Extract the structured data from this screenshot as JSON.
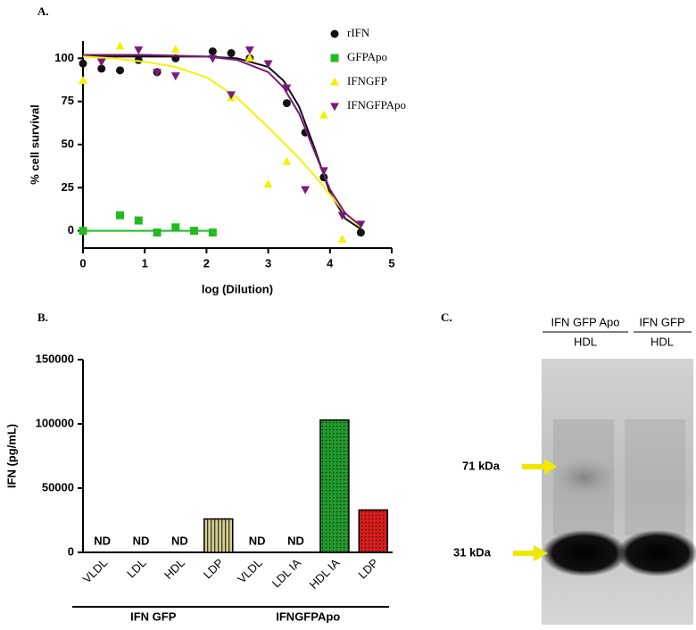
{
  "chart_data": [
    {
      "type": "scatter",
      "title": "A.",
      "xlabel": "log (Dilution)",
      "ylabel": "% cell survival",
      "xlim": [
        0,
        5
      ],
      "xticks": [
        0,
        1,
        2,
        3,
        4,
        5
      ],
      "ylim": [
        -10,
        110
      ],
      "yticks": [
        0,
        25,
        50,
        75,
        100
      ],
      "legend": "upper right",
      "series": [
        {
          "name": "rIFN",
          "color": "#111111",
          "marker": "circle",
          "x": [
            0,
            0.3,
            0.6,
            0.9,
            1.2,
            1.5,
            2.1,
            2.4,
            2.7,
            3.3,
            3.6,
            3.9,
            4.5
          ],
          "values": [
            97,
            94,
            93,
            99,
            92,
            100,
            104,
            103,
            100,
            74,
            57,
            31,
            -1
          ],
          "fit": {
            "x": [
              0,
              0.5,
              1,
              1.5,
              2,
              2.5,
              3,
              3.25,
              3.5,
              3.75,
              4,
              4.25,
              4.5
            ],
            "values": [
              101,
              101,
              101,
              101,
              101,
              100,
              95,
              87,
              72,
              48,
              22,
              7,
              1
            ]
          }
        },
        {
          "name": "GFPApo",
          "color": "#22bb22",
          "marker": "square",
          "x": [
            0,
            0.6,
            0.9,
            1.2,
            1.5,
            1.8,
            2.1
          ],
          "values": [
            0,
            9,
            6,
            -1,
            2,
            0,
            -1
          ],
          "fit": {
            "x": [
              0,
              2.1
            ],
            "values": [
              0,
              0
            ]
          }
        },
        {
          "name": "IFNGFP",
          "color": "#f2f200",
          "marker": "triangle-up",
          "x": [
            0,
            0.6,
            1.5,
            2.4,
            2.7,
            3.0,
            3.3,
            3.9,
            4.2
          ],
          "values": [
            87,
            107,
            105,
            77,
            100,
            27,
            40,
            67,
            -5
          ],
          "fit": {
            "x": [
              0,
              0.5,
              1,
              1.5,
              2,
              2.5,
              3,
              3.25,
              3.5,
              3.75,
              4,
              4.25,
              4.5
            ],
            "values": [
              101,
              100,
              98,
              95,
              89,
              77,
              60,
              51,
              42,
              32,
              21,
              10,
              2
            ]
          }
        },
        {
          "name": "IFNGFPApo",
          "color": "#7a1a7a",
          "marker": "triangle-down",
          "x": [
            0.3,
            0.9,
            1.2,
            1.5,
            2.1,
            2.4,
            2.7,
            3.0,
            3.3,
            3.6,
            3.9,
            4.2,
            4.5
          ],
          "values": [
            98,
            105,
            92,
            90,
            100,
            79,
            105,
            97,
            83,
            24,
            35,
            9,
            4
          ],
          "fit": {
            "x": [
              0,
              0.5,
              1,
              1.5,
              2,
              2.5,
              3,
              3.25,
              3.5,
              3.75,
              4,
              4.25,
              4.5
            ],
            "values": [
              102,
              102,
              102,
              101.5,
              101,
              99,
              92,
              83,
              68,
              46,
              24,
              10,
              3
            ]
          }
        }
      ]
    },
    {
      "type": "bar",
      "title": "B.",
      "ylabel": "IFN (pg/mL)",
      "ylim": [
        0,
        150000
      ],
      "yticks": [
        0,
        50000,
        100000,
        150000
      ],
      "categories": [
        "VLDL",
        "LDL",
        "HDL",
        "LDP",
        "VLDL",
        "LDL IA",
        "HDL IA",
        "LDP"
      ],
      "values": [
        null,
        null,
        null,
        26000,
        null,
        null,
        103000,
        33000
      ],
      "value_labels": [
        "ND",
        "ND",
        "ND",
        null,
        "ND",
        "ND",
        null,
        null
      ],
      "colors": [
        null,
        null,
        null,
        "#d9cf8c",
        null,
        null,
        "#1f9a2a",
        "#d81c1c"
      ],
      "patterns": [
        null,
        null,
        null,
        "stripes",
        null,
        null,
        "dots",
        "dots"
      ],
      "groups": [
        {
          "name": "IFN GFP",
          "start": 0,
          "end": 3
        },
        {
          "name": "IFNGFPApo",
          "start": 4,
          "end": 7
        }
      ]
    }
  ],
  "panel_c": {
    "label": "C.",
    "lanes": [
      {
        "name": "IFN GFP Apo",
        "sub": "HDL"
      },
      {
        "name": "IFN GFP",
        "sub": "HDL"
      }
    ],
    "markers": [
      "71 kDa",
      "31 kDa"
    ]
  }
}
